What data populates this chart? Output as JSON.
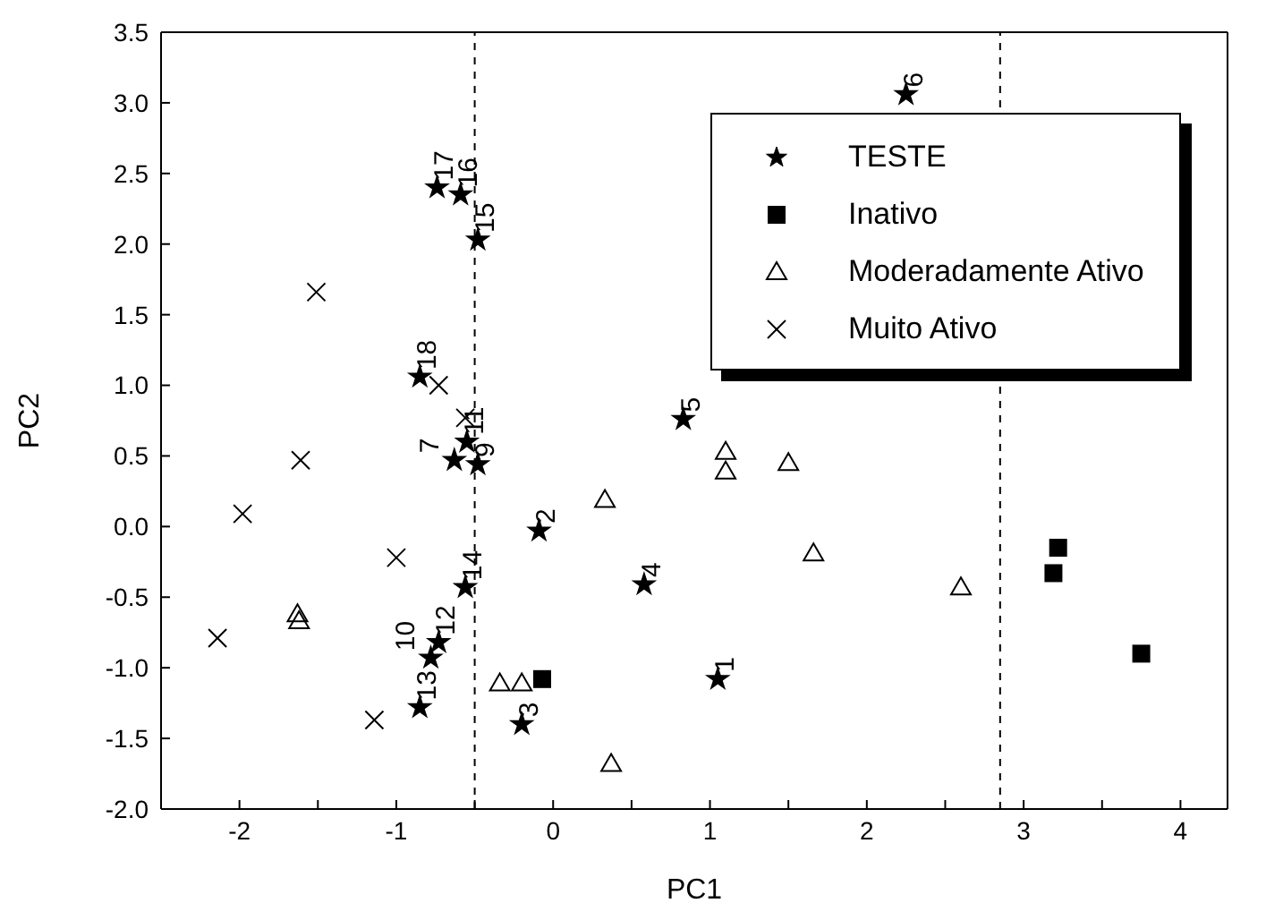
{
  "chart_data": {
    "type": "scatter",
    "xlabel": "PC1",
    "ylabel": "PC2",
    "xlim": [
      -2.5,
      4.3
    ],
    "ylim": [
      -2.0,
      3.5
    ],
    "xticks": [
      {
        "value": -2.5,
        "label": null
      },
      -2,
      {
        "value": -1.5,
        "label": null
      },
      -1,
      {
        "value": -0.5,
        "label": null
      },
      0,
      {
        "value": 0.5,
        "label": null
      },
      1,
      {
        "value": 1.5,
        "label": null
      },
      2,
      {
        "value": 2.5,
        "label": null
      },
      3,
      {
        "value": 3.5,
        "label": null
      },
      4
    ],
    "yticks": [
      {
        "value": -2,
        "label": "-2.0"
      },
      {
        "value": -1.5,
        "label": "-1.5"
      },
      {
        "value": -1,
        "label": "-1.0"
      },
      {
        "value": -0.5,
        "label": "-0.5"
      },
      {
        "value": 0,
        "label": "0.0"
      },
      {
        "value": 0.5,
        "label": "0.5"
      },
      {
        "value": 1,
        "label": "1.0"
      },
      {
        "value": 1.5,
        "label": "1.5"
      },
      {
        "value": 2,
        "label": "2.0"
      },
      {
        "value": 2.5,
        "label": "2.5"
      },
      {
        "value": 3,
        "label": "3.0"
      },
      {
        "value": 3.5,
        "label": "3.5"
      }
    ],
    "grid": false,
    "legend": "top right",
    "series": [
      {
        "name": "TESTE",
        "color": "#000000",
        "marker": "star",
        "x": [
          -0.74,
          -0.59,
          -0.48,
          -0.85,
          -0.55,
          -0.63,
          -0.48,
          -0.09,
          -0.56,
          0.58,
          -0.85,
          -0.78,
          -0.73,
          -0.2,
          1.05,
          2.25,
          0.83
        ],
        "values": [
          2.4,
          2.35,
          2.03,
          1.06,
          0.6,
          0.47,
          0.44,
          -0.03,
          -0.43,
          -0.41,
          -1.28,
          -0.93,
          -0.82,
          -1.4,
          -1.08,
          3.06,
          0.76
        ]
      },
      {
        "name": "Inativo",
        "color": "#000000",
        "marker": "square",
        "x": [
          -0.07,
          3.22,
          3.19,
          3.75
        ],
        "values": [
          -1.08,
          -0.15,
          -0.33,
          -0.9
        ]
      },
      {
        "name": "Moderadamente Ativo",
        "color": "#000000",
        "marker": "triangle",
        "x": [
          1.1,
          1.1,
          1.5,
          0.33,
          1.66,
          2.6,
          0.37,
          -1.63,
          -1.62,
          -0.34,
          -0.2
        ],
        "values": [
          0.53,
          0.39,
          0.45,
          0.19,
          -0.19,
          -0.43,
          -1.68,
          -0.62,
          -0.67,
          -1.11,
          -1.11
        ]
      },
      {
        "name": "Muito Ativo",
        "color": "#000000",
        "marker": "cross",
        "x": [
          -1.51,
          -0.73,
          -0.56,
          -1.61,
          -1.98,
          -1.0,
          -2.14,
          -1.14
        ],
        "values": [
          1.66,
          1.0,
          0.77,
          0.47,
          0.09,
          -0.22,
          -0.79,
          -1.37
        ]
      }
    ],
    "ref_lines": [
      {
        "axis": "x",
        "value": -0.5,
        "line_style": "dashed",
        "color": "#000000"
      },
      {
        "axis": "x",
        "value": 2.85,
        "line_style": "dashed",
        "color": "#000000"
      }
    ],
    "annotations": [
      {
        "text": "17",
        "x": -0.74,
        "y": 2.4
      },
      {
        "text": "16",
        "x": -0.59,
        "y": 2.35
      },
      {
        "text": "15",
        "x": -0.48,
        "y": 2.03
      },
      {
        "text": "18",
        "x": -0.85,
        "y": 1.06
      },
      {
        "text": "11",
        "x": -0.55,
        "y": 0.6
      },
      {
        "text": "7",
        "x": -0.63,
        "y": 0.47
      },
      {
        "text": "9",
        "x": -0.48,
        "y": 0.44
      },
      {
        "text": "2",
        "x": -0.09,
        "y": -0.03
      },
      {
        "text": "14",
        "x": -0.56,
        "y": -0.43
      },
      {
        "text": "4",
        "x": 0.58,
        "y": -0.41
      },
      {
        "text": "13",
        "x": -0.85,
        "y": -1.28
      },
      {
        "text": "10",
        "x": -0.78,
        "y": -0.93
      },
      {
        "text": "12",
        "x": -0.73,
        "y": -0.82
      },
      {
        "text": "3",
        "x": -0.2,
        "y": -1.4
      },
      {
        "text": "1",
        "x": 1.05,
        "y": -1.08
      },
      {
        "text": "6",
        "x": 2.25,
        "y": 3.06
      },
      {
        "text": "5",
        "x": 0.83,
        "y": 0.76
      }
    ]
  }
}
